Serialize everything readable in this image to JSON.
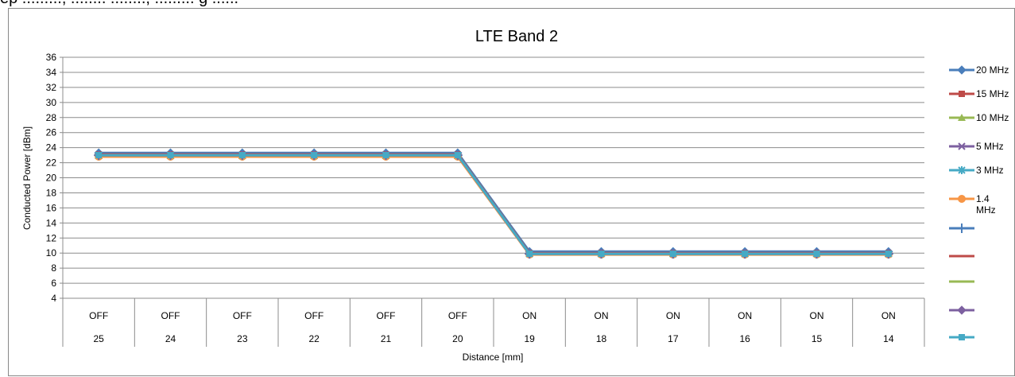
{
  "top_text": "ep ........., ........ ........, ......... g ......",
  "chart_data": {
    "type": "line",
    "title": "LTE Band 2",
    "ylabel": "Conducted Power [dBm]",
    "xlabel": "Distance [mm]",
    "ylim": [
      4,
      36
    ],
    "yticks": [
      4,
      6,
      8,
      10,
      12,
      14,
      16,
      18,
      20,
      22,
      24,
      26,
      28,
      30,
      32,
      34,
      36
    ],
    "grid": true,
    "legend_position": "right",
    "categories_state": [
      "OFF",
      "OFF",
      "OFF",
      "OFF",
      "OFF",
      "OFF",
      "ON",
      "ON",
      "ON",
      "ON",
      "ON",
      "ON"
    ],
    "categories": [
      "25",
      "24",
      "23",
      "22",
      "21",
      "20",
      "19",
      "18",
      "17",
      "16",
      "15",
      "14"
    ],
    "series": [
      {
        "name": "20 MHz",
        "color": "#4a7ebb",
        "marker": "diamond",
        "values": [
          23.3,
          23.3,
          23.3,
          23.3,
          23.3,
          23.3,
          10.2,
          10.2,
          10.2,
          10.2,
          10.2,
          10.2
        ]
      },
      {
        "name": "15 MHz",
        "color": "#be4b48",
        "marker": "square",
        "values": [
          23.1,
          23.1,
          23.1,
          23.1,
          23.1,
          23.1,
          10.0,
          10.0,
          10.0,
          10.0,
          10.0,
          10.0
        ]
      },
      {
        "name": "10 MHz",
        "color": "#98b954",
        "marker": "triangle",
        "values": [
          22.9,
          22.9,
          22.9,
          22.9,
          22.9,
          22.9,
          9.9,
          9.9,
          9.9,
          9.9,
          9.9,
          9.9
        ]
      },
      {
        "name": "5 MHz",
        "color": "#7d60a0",
        "marker": "x",
        "values": [
          23.0,
          23.0,
          23.0,
          23.0,
          23.0,
          23.0,
          9.9,
          9.9,
          9.9,
          9.9,
          9.9,
          9.9
        ]
      },
      {
        "name": "3 MHz",
        "color": "#46aac5",
        "marker": "star",
        "values": [
          23.0,
          23.0,
          23.0,
          23.0,
          23.0,
          23.0,
          9.9,
          9.9,
          9.9,
          9.9,
          9.9,
          9.9
        ]
      },
      {
        "name": "1.4 MHz",
        "color": "#f79646",
        "marker": "circle",
        "values": [
          22.8,
          22.8,
          22.8,
          22.8,
          22.8,
          22.8,
          9.8,
          9.8,
          9.8,
          9.8,
          9.8,
          9.8
        ]
      },
      {
        "name": "",
        "color": "#4a7ebb",
        "marker": "plus",
        "values": [
          23.0,
          23.0,
          23.0,
          23.0,
          23.0,
          23.0,
          9.9,
          9.9,
          9.9,
          9.9,
          9.9,
          9.9
        ]
      },
      {
        "name": "",
        "color": "#be4b48",
        "marker": "dash",
        "values": [
          23.0,
          23.0,
          23.0,
          23.0,
          23.0,
          23.0,
          9.9,
          9.9,
          9.9,
          9.9,
          9.9,
          9.9
        ]
      },
      {
        "name": "",
        "color": "#98b954",
        "marker": "dash",
        "values": [
          23.0,
          23.0,
          23.0,
          23.0,
          23.0,
          23.0,
          9.9,
          9.9,
          9.9,
          9.9,
          9.9,
          9.9
        ]
      },
      {
        "name": "",
        "color": "#7d60a0",
        "marker": "diamond",
        "values": [
          23.0,
          23.0,
          23.0,
          23.0,
          23.0,
          23.0,
          9.9,
          9.9,
          9.9,
          9.9,
          9.9,
          9.9
        ]
      },
      {
        "name": "",
        "color": "#46aac5",
        "marker": "square",
        "values": [
          23.0,
          23.0,
          23.0,
          23.0,
          23.0,
          23.0,
          9.9,
          9.9,
          9.9,
          9.9,
          9.9,
          9.9
        ]
      }
    ]
  }
}
